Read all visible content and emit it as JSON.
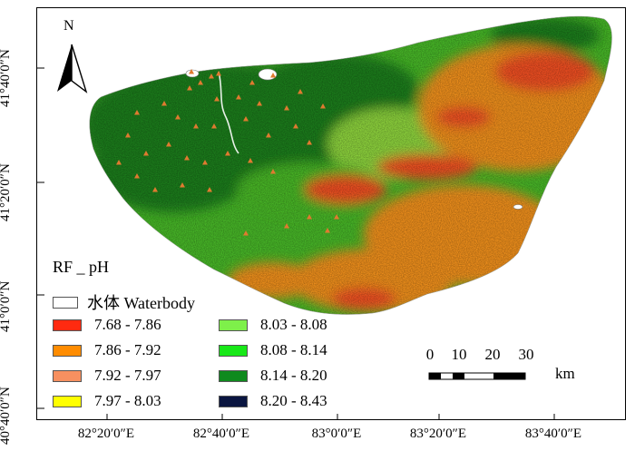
{
  "map": {
    "north_label": "N",
    "x_ticks": [
      "82°20′0″E",
      "82°40′0″E",
      "83°0′0″E",
      "83°20′0″E",
      "83°40′0″E"
    ],
    "y_ticks": [
      "41°40′0″N",
      "41°20′0″N",
      "41°0′0″N",
      "40°40′0″N"
    ],
    "legend": {
      "title": "RF _ pH",
      "waterbody": "水体  Waterbody",
      "classes": [
        {
          "label": "7.68 - 7.86",
          "color": "#ff2a10"
        },
        {
          "label": "7.86 - 7.92",
          "color": "#ff8c00"
        },
        {
          "label": "7.92 - 7.97",
          "color": "#f79060"
        },
        {
          "label": "7.97 - 8.03",
          "color": "#ffff00"
        },
        {
          "label": "8.03 - 8.08",
          "color": "#7ef04a"
        },
        {
          "label": "8.08 - 8.14",
          "color": "#18e818"
        },
        {
          "label": "8.14 - 8.20",
          "color": "#0f8a1e"
        },
        {
          "label": "8.20 - 8.43",
          "color": "#0a1540"
        }
      ]
    },
    "scale": {
      "ticks": [
        "0",
        "10",
        "20",
        "30"
      ],
      "unit": "km"
    },
    "colors": {
      "dark_green": "#1e7e1e",
      "green": "#48b828",
      "light_green": "#8ed43c",
      "orange": "#f0901c",
      "red_orange": "#f05020",
      "sample_point": "#e07a30"
    }
  }
}
